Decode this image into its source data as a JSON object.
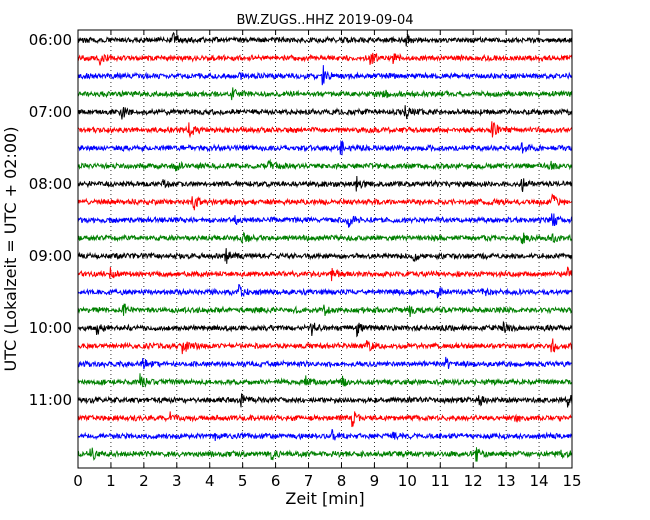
{
  "chart_data": {
    "type": "line",
    "title": "BW.ZUGS..HHZ 2019-09-04",
    "xlabel": "Zeit  [min]",
    "ylabel": "UTC (Lokalzeit = UTC + 02:00)",
    "xlim": [
      0,
      15
    ],
    "x_ticks": [
      "0",
      "1",
      "2",
      "3",
      "4",
      "5",
      "6",
      "7",
      "8",
      "9",
      "10",
      "11",
      "12",
      "13",
      "14",
      "15"
    ],
    "y_tick_labels": [
      "06:00",
      "07:00",
      "08:00",
      "09:00",
      "10:00",
      "11:00"
    ],
    "grid_x": true,
    "trace_interval_min": 15,
    "trace_colors": [
      "#000000",
      "#ff0000",
      "#0000ff",
      "#008000"
    ],
    "traces": [
      {
        "start": "06:00",
        "events": [
          [
            2.9,
            0.8
          ],
          [
            10.0,
            0.5
          ]
        ]
      },
      {
        "start": "06:15",
        "events": [
          [
            0.65,
            0.9
          ],
          [
            8.9,
            0.8
          ],
          [
            9.6,
            0.45
          ]
        ]
      },
      {
        "start": "06:30",
        "events": [
          [
            4.9,
            0.35
          ],
          [
            7.45,
            1.0
          ]
        ]
      },
      {
        "start": "06:45",
        "events": [
          [
            4.7,
            0.55
          ],
          [
            9.3,
            0.3
          ]
        ]
      },
      {
        "start": "07:00",
        "events": [
          [
            1.3,
            0.85
          ],
          [
            9.95,
            0.75
          ]
        ]
      },
      {
        "start": "07:15",
        "events": [
          [
            3.35,
            0.85
          ],
          [
            12.6,
            0.8
          ]
        ]
      },
      {
        "start": "07:30",
        "events": [
          [
            8.0,
            0.8
          ],
          [
            13.5,
            0.35
          ]
        ]
      },
      {
        "start": "07:45",
        "events": [
          [
            3.0,
            0.5
          ],
          [
            5.8,
            0.5
          ],
          [
            14.3,
            0.55
          ]
        ]
      },
      {
        "start": "08:00",
        "events": [
          [
            2.6,
            0.35
          ],
          [
            8.45,
            0.75
          ],
          [
            13.5,
            0.6
          ]
        ]
      },
      {
        "start": "08:15",
        "events": [
          [
            3.5,
            0.8
          ],
          [
            14.4,
            0.85
          ]
        ]
      },
      {
        "start": "08:30",
        "events": [
          [
            8.2,
            1.0
          ],
          [
            4.8,
            0.35
          ],
          [
            14.4,
            0.7
          ]
        ]
      },
      {
        "start": "08:45",
        "events": [
          [
            5.0,
            0.6
          ],
          [
            13.5,
            0.55
          ],
          [
            14.4,
            0.45
          ]
        ]
      },
      {
        "start": "09:00",
        "events": [
          [
            4.5,
            0.7
          ],
          [
            10.2,
            0.4
          ]
        ]
      },
      {
        "start": "09:15",
        "events": [
          [
            1.0,
            0.55
          ],
          [
            7.7,
            0.6
          ],
          [
            14.9,
            0.6
          ]
        ]
      },
      {
        "start": "09:30",
        "events": [
          [
            4.9,
            0.6
          ],
          [
            10.9,
            0.6
          ],
          [
            12.3,
            0.4
          ]
        ]
      },
      {
        "start": "09:45",
        "events": [
          [
            1.4,
            0.6
          ],
          [
            7.5,
            0.4
          ],
          [
            10.1,
            0.5
          ]
        ]
      },
      {
        "start": "10:00",
        "events": [
          [
            0.6,
            0.5
          ],
          [
            7.1,
            0.75
          ],
          [
            8.5,
            0.65
          ],
          [
            12.9,
            0.55
          ]
        ]
      },
      {
        "start": "10:15",
        "events": [
          [
            3.2,
            0.65
          ],
          [
            8.8,
            0.45
          ],
          [
            14.4,
            0.7
          ]
        ]
      },
      {
        "start": "10:30",
        "events": [
          [
            2.0,
            0.5
          ],
          [
            11.2,
            0.6
          ]
        ]
      },
      {
        "start": "10:45",
        "events": [
          [
            1.9,
            0.65
          ],
          [
            6.9,
            0.55
          ],
          [
            8.0,
            0.5
          ]
        ]
      },
      {
        "start": "11:00",
        "events": [
          [
            4.95,
            0.65
          ],
          [
            12.2,
            0.6
          ],
          [
            14.9,
            0.65
          ]
        ]
      },
      {
        "start": "11:15",
        "events": [
          [
            2.8,
            0.6
          ],
          [
            8.35,
            0.8
          ],
          [
            13.3,
            0.4
          ]
        ]
      },
      {
        "start": "11:30",
        "events": [
          [
            7.7,
            0.6
          ],
          [
            9.6,
            0.4
          ],
          [
            4.2,
            0.35
          ]
        ]
      },
      {
        "start": "11:45",
        "events": [
          [
            0.4,
            0.7
          ],
          [
            5.9,
            0.5
          ],
          [
            12.1,
            0.6
          ],
          [
            14.7,
            0.55
          ]
        ]
      }
    ]
  }
}
